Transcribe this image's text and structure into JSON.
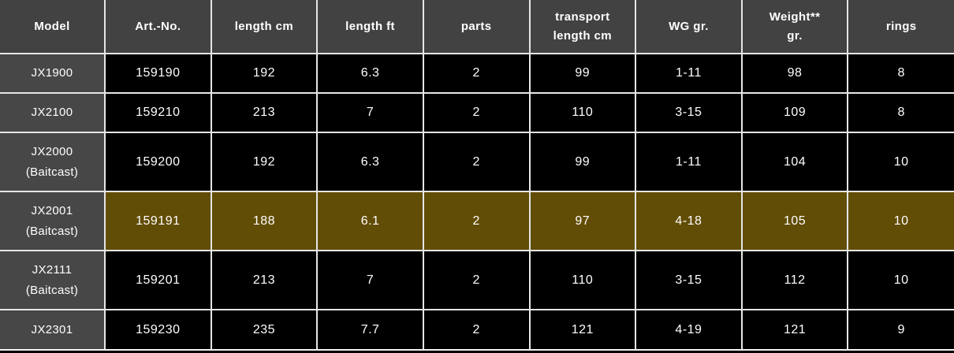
{
  "colors": {
    "header_bg": "#424242",
    "model_cell_bg": "#474747",
    "data_cell_bg": "#000000",
    "highlight_bg": "#624d06",
    "grid_line": "#e6e6e6",
    "text": "#ffffff"
  },
  "table": {
    "columns": [
      {
        "id": "model",
        "label": "Model"
      },
      {
        "id": "art-no",
        "label": "Art.-No."
      },
      {
        "id": "length-cm",
        "label": "length cm"
      },
      {
        "id": "length-ft",
        "label": "length ft"
      },
      {
        "id": "parts",
        "label": "parts"
      },
      {
        "id": "transport-length-cm",
        "label": "transport\nlength cm"
      },
      {
        "id": "wg-gr",
        "label": "WG gr."
      },
      {
        "id": "weight-gr",
        "label": "Weight**\ngr."
      },
      {
        "id": "rings",
        "label": "rings"
      }
    ],
    "rows": [
      {
        "model": "JX1900",
        "model_note": "",
        "highlighted": false,
        "values": [
          "159190",
          "192",
          "6.3",
          "2",
          "99",
          "1-11",
          "98",
          "8"
        ]
      },
      {
        "model": "JX2100",
        "model_note": "",
        "highlighted": false,
        "values": [
          "159210",
          "213",
          "7",
          "2",
          "110",
          "3-15",
          "109",
          "8"
        ]
      },
      {
        "model": "JX2000",
        "model_note": "(Baitcast)",
        "highlighted": false,
        "values": [
          "159200",
          "192",
          "6.3",
          "2",
          "99",
          "1-11",
          "104",
          "10"
        ]
      },
      {
        "model": "JX2001",
        "model_note": "(Baitcast)",
        "highlighted": true,
        "values": [
          "159191",
          "188",
          "6.1",
          "2",
          "97",
          "4-18",
          "105",
          "10"
        ]
      },
      {
        "model": "JX2111",
        "model_note": "(Baitcast)",
        "highlighted": false,
        "values": [
          "159201",
          "213",
          "7",
          "2",
          "110",
          "3-15",
          "112",
          "10"
        ]
      },
      {
        "model": "JX2301",
        "model_note": "",
        "highlighted": false,
        "values": [
          "159230",
          "235",
          "7.7",
          "2",
          "121",
          "4-19",
          "121",
          "9"
        ]
      }
    ]
  }
}
